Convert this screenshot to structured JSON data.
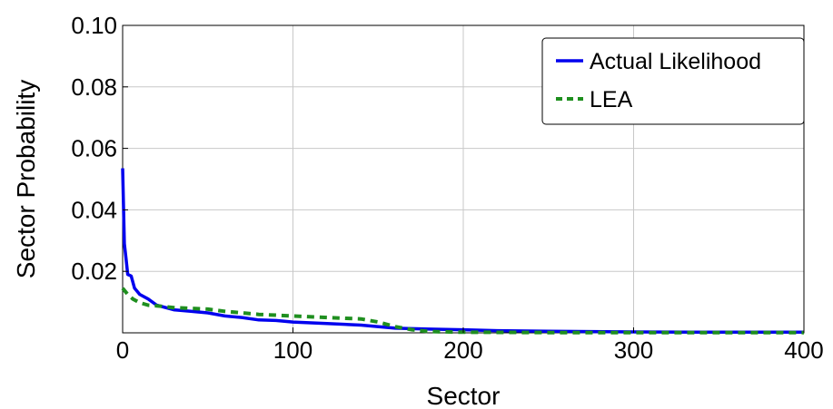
{
  "chart_data": {
    "type": "line",
    "title": "",
    "xlabel": "Sector",
    "ylabel": "Sector Probability",
    "xlim": [
      0,
      400
    ],
    "ylim": [
      0,
      0.1
    ],
    "x_ticks": [
      0,
      100,
      200,
      300,
      400
    ],
    "x_tick_labels": [
      "0",
      "100",
      "200",
      "300",
      "400"
    ],
    "y_ticks": [
      0.02,
      0.04,
      0.06,
      0.08,
      0.1
    ],
    "y_tick_labels": [
      "0.02",
      "0.04",
      "0.06",
      "0.08",
      "0.10"
    ],
    "grid": true,
    "legend_position": "top-right",
    "series": [
      {
        "name": "Actual Likelihood",
        "color": "#0000ee",
        "style": "solid",
        "points": [
          [
            0,
            0.0535
          ],
          [
            1,
            0.029
          ],
          [
            2,
            0.024
          ],
          [
            3,
            0.019
          ],
          [
            5,
            0.0185
          ],
          [
            7,
            0.0145
          ],
          [
            10,
            0.0125
          ],
          [
            15,
            0.011
          ],
          [
            20,
            0.009
          ],
          [
            30,
            0.0075
          ],
          [
            40,
            0.007
          ],
          [
            50,
            0.0065
          ],
          [
            60,
            0.0055
          ],
          [
            70,
            0.005
          ],
          [
            80,
            0.0042
          ],
          [
            90,
            0.004
          ],
          [
            100,
            0.0035
          ],
          [
            120,
            0.003
          ],
          [
            140,
            0.0025
          ],
          [
            160,
            0.0015
          ],
          [
            180,
            0.0012
          ],
          [
            200,
            0.001
          ],
          [
            220,
            0.0007
          ],
          [
            250,
            0.0005
          ],
          [
            300,
            0.0003
          ],
          [
            350,
            0.0002
          ],
          [
            400,
            0.0002
          ]
        ]
      },
      {
        "name": "LEA",
        "color": "#1f8f1f",
        "style": "dashed",
        "points": [
          [
            0,
            0.0145
          ],
          [
            3,
            0.0125
          ],
          [
            6,
            0.011
          ],
          [
            10,
            0.0098
          ],
          [
            15,
            0.009
          ],
          [
            20,
            0.0088
          ],
          [
            25,
            0.0085
          ],
          [
            30,
            0.0082
          ],
          [
            50,
            0.0077
          ],
          [
            60,
            0.007
          ],
          [
            80,
            0.006
          ],
          [
            100,
            0.0055
          ],
          [
            120,
            0.005
          ],
          [
            140,
            0.0045
          ],
          [
            150,
            0.0035
          ],
          [
            160,
            0.002
          ],
          [
            170,
            0.001
          ],
          [
            180,
            0.0004
          ],
          [
            200,
            0.0002
          ],
          [
            250,
            0.0001
          ],
          [
            300,
            0.0001
          ],
          [
            400,
            0.0001
          ]
        ]
      }
    ]
  }
}
